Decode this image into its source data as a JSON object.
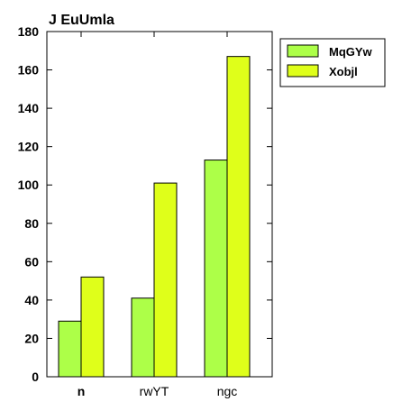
{
  "chart_data": {
    "type": "bar",
    "title": "J EuUmla",
    "categories": [
      "n",
      "rwYT",
      "ngc"
    ],
    "bold_categories": [
      "n"
    ],
    "series": [
      {
        "name": "MqGYw",
        "values": [
          29,
          41,
          113
        ],
        "color": "#adff48"
      },
      {
        "name": "Xobjl",
        "values": [
          52,
          101,
          167
        ],
        "color": "#dfff1a"
      }
    ],
    "xlabel": "",
    "ylabel": "",
    "ylim": [
      0,
      180
    ],
    "yticks": [
      0,
      20,
      40,
      60,
      80,
      100,
      120,
      140,
      160,
      180
    ],
    "ytick_labels": [
      "0",
      "20",
      "40",
      "60",
      "80",
      "100",
      "120",
      "140",
      "160",
      "180"
    ],
    "grid": false,
    "legend_position": "top-right outside"
  }
}
